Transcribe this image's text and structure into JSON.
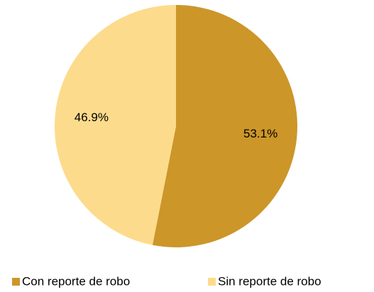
{
  "chart_data": {
    "type": "pie",
    "categories": [
      "Con reporte de robo",
      "Sin reporte de robo"
    ],
    "values": [
      53.1,
      46.9
    ],
    "value_labels": [
      "53.1%",
      "46.9%"
    ],
    "colors": [
      "#cc9629",
      "#fddb8c"
    ],
    "legend": "bottom"
  }
}
